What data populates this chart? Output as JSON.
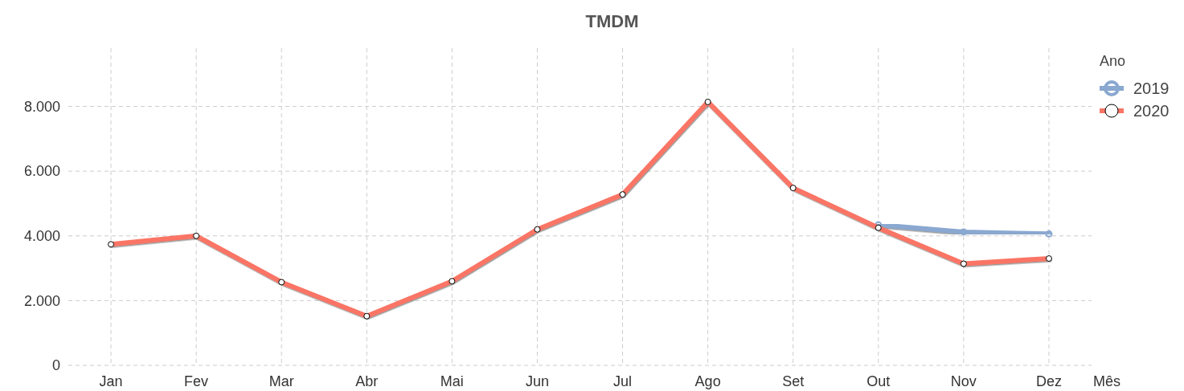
{
  "chart_data": {
    "type": "line",
    "title": "TMDM",
    "xlabel": "Mês",
    "legend_title": "Ano",
    "categories": [
      "Jan",
      "Fev",
      "Mar",
      "Abr",
      "Mai",
      "Jun",
      "Jul",
      "Ago",
      "Set",
      "Out",
      "Nov",
      "Dez"
    ],
    "series": [
      {
        "name": "2019",
        "color": "#8aa8d0",
        "values": [
          null,
          null,
          null,
          null,
          null,
          null,
          null,
          null,
          null,
          4340,
          4120,
          4060
        ]
      },
      {
        "name": "2020",
        "color": "#fa7565",
        "values": [
          3740,
          4000,
          2570,
          1520,
          2600,
          4200,
          5280,
          8140,
          5480,
          4250,
          3140,
          3300
        ]
      }
    ],
    "ylim": [
      0,
      9800
    ],
    "yticks": [
      0,
      {
        "value": 2000,
        "label": "2.000"
      },
      {
        "value": 4000,
        "label": "4.000"
      },
      {
        "value": 6000,
        "label": "6.000"
      },
      {
        "value": 8000,
        "label": "8.000"
      }
    ],
    "grid": true,
    "legend": "right",
    "marker": "circle",
    "line_style": "solid"
  }
}
